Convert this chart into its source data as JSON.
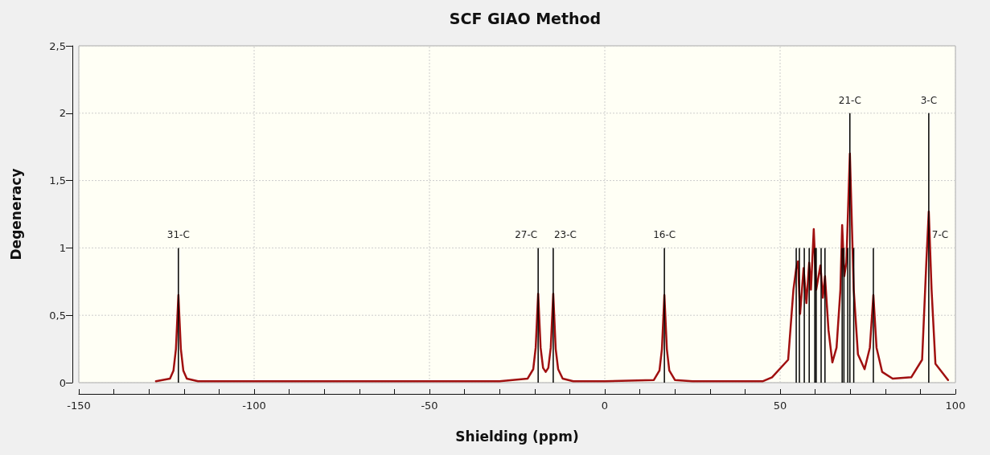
{
  "chart_data": {
    "type": "line",
    "title": "SCF GIAO Method",
    "xlabel": "Shielding (ppm)",
    "ylabel": "Degeneracy",
    "xlim": [
      -150,
      100
    ],
    "xticks": [
      -150,
      {
        "value": -140,
        "label": null
      },
      {
        "value": -130,
        "label": null
      },
      {
        "value": -120,
        "label": null
      },
      {
        "value": -110,
        "label": null
      },
      -100,
      {
        "value": -90,
        "label": null
      },
      {
        "value": -80,
        "label": null
      },
      {
        "value": -70,
        "label": null
      },
      {
        "value": -60,
        "label": null
      },
      -50,
      {
        "value": -40,
        "label": null
      },
      {
        "value": -30,
        "label": null
      },
      {
        "value": -20,
        "label": null
      },
      {
        "value": -10,
        "label": null
      },
      0,
      {
        "value": 10,
        "label": null
      },
      {
        "value": 20,
        "label": null
      },
      {
        "value": 30,
        "label": null
      },
      {
        "value": 40,
        "label": null
      },
      50,
      {
        "value": 60,
        "label": null
      },
      {
        "value": 70,
        "label": null
      },
      {
        "value": 80,
        "label": null
      },
      {
        "value": 90,
        "label": null
      },
      100
    ],
    "ylim": [
      0,
      2.5
    ],
    "yticks": [
      0,
      {
        "value": 0.5,
        "label": "0,5"
      },
      1,
      {
        "value": 1.5,
        "label": "1,5"
      },
      2,
      {
        "value": 2.5,
        "label": "2,5"
      }
    ],
    "grid": true,
    "marker": "none",
    "line_style": "solid",
    "series": [
      {
        "type": "bar",
        "color": "#000000",
        "x": [
          -121.6,
          -19.0,
          -14.7,
          17.0,
          54.6,
          55.5,
          56.9,
          58.3,
          59.9,
          60.3,
          61.7,
          62.8,
          67.7,
          68.2,
          69.3,
          69.9,
          71.0,
          76.6,
          92.4
        ],
        "values": [
          1,
          1,
          1,
          1,
          1,
          1,
          1,
          1,
          1,
          1,
          1,
          1,
          1,
          1,
          1,
          2,
          1,
          1,
          2
        ]
      },
      {
        "color": "#a01010",
        "x": [
          -128,
          -124,
          -123,
          -122.3,
          -121.6,
          -120.9,
          -120.2,
          -119.2,
          -116,
          -100,
          -60,
          -30,
          -22,
          -20.4,
          -19.7,
          -19.0,
          -18.3,
          -17.6,
          -16.85,
          -16.1,
          -15.4,
          -14.7,
          -14.0,
          -13.3,
          -12,
          -9,
          0,
          14,
          15.6,
          16.3,
          17.0,
          17.7,
          18.4,
          20,
          25,
          45,
          47.7,
          52.3,
          53.8,
          54.6,
          55.1,
          55.7,
          56.7,
          57.5,
          58.3,
          58.8,
          59.6,
          60.3,
          61.5,
          62.2,
          62.8,
          63.8,
          64.9,
          66.1,
          67.2,
          67.7,
          68.3,
          68.9,
          69.9,
          71.0,
          72.2,
          74.1,
          75.6,
          76.6,
          77.5,
          79.1,
          82.1,
          87.4,
          90.5,
          91.7,
          92.4,
          93.2,
          94.3,
          97.9
        ],
        "values": [
          0.01,
          0.03,
          0.09,
          0.25,
          0.65,
          0.25,
          0.09,
          0.03,
          0.01,
          0.01,
          0.01,
          0.01,
          0.03,
          0.1,
          0.26,
          0.66,
          0.26,
          0.11,
          0.08,
          0.11,
          0.26,
          0.66,
          0.25,
          0.1,
          0.03,
          0.01,
          0.01,
          0.02,
          0.09,
          0.25,
          0.65,
          0.25,
          0.09,
          0.02,
          0.01,
          0.01,
          0.04,
          0.17,
          0.69,
          0.85,
          0.9,
          0.51,
          0.85,
          0.59,
          0.89,
          0.69,
          1.14,
          0.69,
          0.87,
          0.63,
          0.79,
          0.39,
          0.15,
          0.26,
          0.69,
          1.17,
          0.79,
          0.89,
          1.7,
          0.69,
          0.21,
          0.1,
          0.26,
          0.65,
          0.26,
          0.08,
          0.03,
          0.04,
          0.17,
          0.89,
          1.27,
          0.69,
          0.14,
          0.02
        ]
      }
    ],
    "annotations": [
      {
        "text": "31-C",
        "x": -121.6,
        "y": 1
      },
      {
        "text": "27-C",
        "x": -19.0,
        "y": 1
      },
      {
        "text": "23-C",
        "x": -14.7,
        "y": 1
      },
      {
        "text": "16-C",
        "x": 17.0,
        "y": 1
      },
      {
        "text": "21-C",
        "x": 69.9,
        "y": 2
      },
      {
        "text": "7-C",
        "x": 92.4,
        "y": 1
      },
      {
        "text": "3-C",
        "x": 92.4,
        "y": 2
      }
    ]
  }
}
